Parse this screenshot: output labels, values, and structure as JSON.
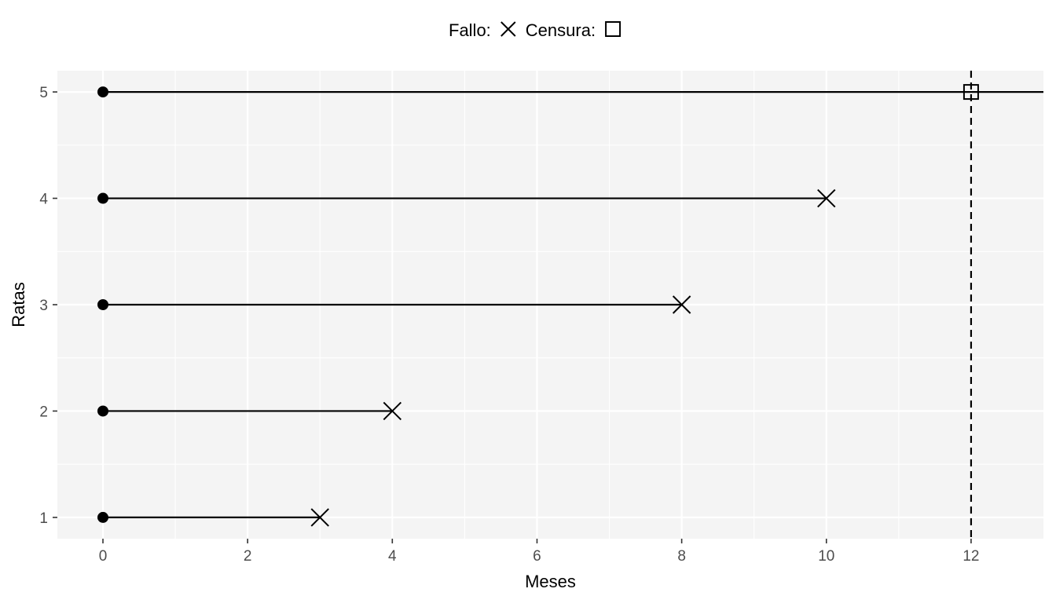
{
  "chart_data": {
    "type": "scatter",
    "legend": {
      "position": "top",
      "items": [
        {
          "label": "Fallo:",
          "symbol": "cross"
        },
        {
          "label": "Censura:",
          "symbol": "square"
        }
      ]
    },
    "xlabel": "Meses",
    "ylabel": "Ratas",
    "xlim": [
      -0.63,
      13
    ],
    "ylim": [
      0.8,
      5.2
    ],
    "xticks": [
      0,
      2,
      4,
      6,
      8,
      10,
      12
    ],
    "yticks": [
      1,
      2,
      3,
      4,
      5
    ],
    "grid": true,
    "background": "#f4f4f4",
    "censoring_line_x": 12,
    "subjects": [
      {
        "y": 1,
        "start": 0,
        "end": 3,
        "event": "fallo"
      },
      {
        "y": 2,
        "start": 0,
        "end": 4,
        "event": "fallo"
      },
      {
        "y": 3,
        "start": 0,
        "end": 8,
        "event": "fallo"
      },
      {
        "y": 4,
        "start": 0,
        "end": 10,
        "event": "fallo"
      },
      {
        "y": 5,
        "start": 0,
        "end": 12,
        "end_line": 13,
        "event": "censura"
      }
    ]
  }
}
